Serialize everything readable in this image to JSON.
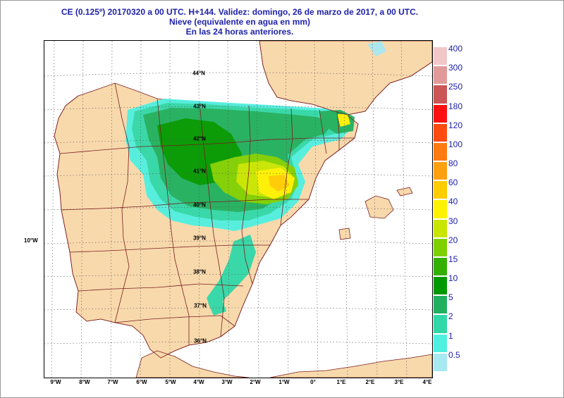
{
  "header": {
    "line1": "CE (0.125º) 20170320 a 00 UTC.  H+144. Validez: domingo, 26 de marzo de 2017,  a  00 UTC.",
    "line2": "Nieve (equivalente en agua en mm)",
    "line3": "En las 24 horas anteriores."
  },
  "map": {
    "lat_labels": [
      "44°N",
      "43°N",
      "42°N",
      "41°N",
      "40°N",
      "39°N",
      "38°N",
      "37°N",
      "36°N"
    ],
    "lon_labels": [
      "9°W",
      "8°W",
      "7°W",
      "6°W",
      "5°W",
      "4°W",
      "3°W",
      "2°W",
      "1°W",
      "0°",
      "1°E",
      "2°E",
      "3°E",
      "4°E"
    ],
    "side_label": "10°W",
    "colors": {
      "land": "#f8d9ac",
      "sea": "#ffffff",
      "borders": "#7a1e1e"
    }
  },
  "legend": {
    "labels": [
      "400",
      "300",
      "250",
      "180",
      "120",
      "100",
      "80",
      "60",
      "40",
      "30",
      "20",
      "15",
      "10",
      "5",
      "2",
      "1",
      "0.5"
    ],
    "colors": [
      "#f0c8c8",
      "#e19a9a",
      "#cc5555",
      "#ff1010",
      "#ff4a10",
      "#ff7a10",
      "#ffa010",
      "#ffcc00",
      "#fff200",
      "#c8e600",
      "#7fd000",
      "#33b000",
      "#009900",
      "#20b060",
      "#30d8a8",
      "#50f0e0",
      "#a8e8f0"
    ]
  }
}
